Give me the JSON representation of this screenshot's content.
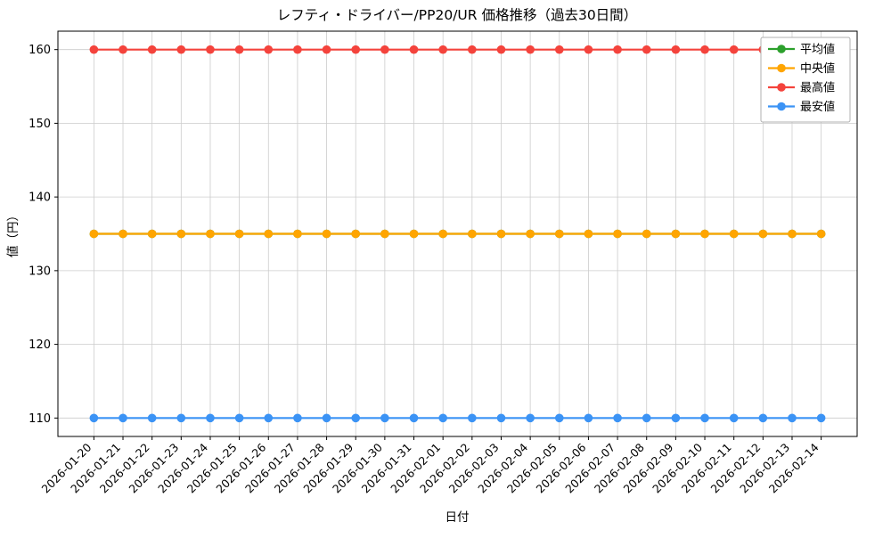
{
  "chart_data": {
    "type": "line",
    "title": "レフティ・ドライバー/PP20/UR 価格推移（過去30日間）",
    "xlabel": "日付",
    "ylabel": "値（円）",
    "categories": [
      "2026-01-20",
      "2026-01-21",
      "2026-01-22",
      "2026-01-23",
      "2026-01-24",
      "2026-01-25",
      "2026-01-26",
      "2026-01-27",
      "2026-01-28",
      "2026-01-29",
      "2026-01-30",
      "2026-01-31",
      "2026-02-01",
      "2026-02-02",
      "2026-02-03",
      "2026-02-04",
      "2026-02-05",
      "2026-02-06",
      "2026-02-07",
      "2026-02-08",
      "2026-02-09",
      "2026-02-10",
      "2026-02-11",
      "2026-02-12",
      "2026-02-13",
      "2026-02-14"
    ],
    "yticks": [
      110,
      120,
      130,
      140,
      150,
      160
    ],
    "ylim": [
      107.5,
      162.5
    ],
    "grid": true,
    "legend_position": "upper right",
    "series": [
      {
        "name": "平均値",
        "color": "#2ca02c",
        "values": [
          135,
          135,
          135,
          135,
          135,
          135,
          135,
          135,
          135,
          135,
          135,
          135,
          135,
          135,
          135,
          135,
          135,
          135,
          135,
          135,
          135,
          135,
          135,
          135,
          135,
          135
        ]
      },
      {
        "name": "中央値",
        "color": "#ffa500",
        "values": [
          135,
          135,
          135,
          135,
          135,
          135,
          135,
          135,
          135,
          135,
          135,
          135,
          135,
          135,
          135,
          135,
          135,
          135,
          135,
          135,
          135,
          135,
          135,
          135,
          135,
          135
        ]
      },
      {
        "name": "最高値",
        "color": "#f4433c",
        "values": [
          160,
          160,
          160,
          160,
          160,
          160,
          160,
          160,
          160,
          160,
          160,
          160,
          160,
          160,
          160,
          160,
          160,
          160,
          160,
          160,
          160,
          160,
          160,
          160,
          160,
          160
        ]
      },
      {
        "name": "最安値",
        "color": "#3b93f5",
        "values": [
          110,
          110,
          110,
          110,
          110,
          110,
          110,
          110,
          110,
          110,
          110,
          110,
          110,
          110,
          110,
          110,
          110,
          110,
          110,
          110,
          110,
          110,
          110,
          110,
          110,
          110
        ]
      }
    ]
  }
}
